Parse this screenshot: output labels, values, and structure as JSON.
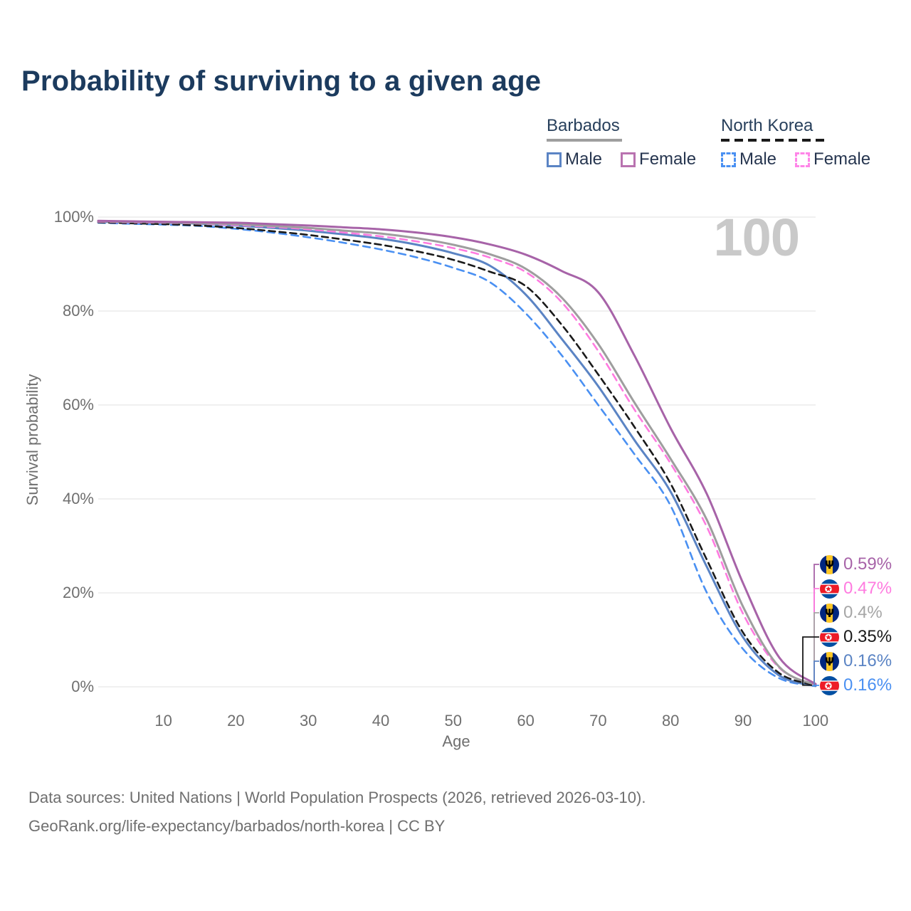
{
  "title": "Probability of surviving to a given age",
  "watermark": "100",
  "legend": {
    "groups": [
      {
        "name": "Barbados",
        "line_style": "solid",
        "line_color": "#9e9e9e",
        "items": [
          {
            "label": "Male",
            "color": "#5b84c4",
            "dashed": false
          },
          {
            "label": "Female",
            "color": "#b973b0",
            "dashed": false
          }
        ]
      },
      {
        "name": "North Korea",
        "line_style": "dashed",
        "line_color": "#1a1a1a",
        "items": [
          {
            "label": "Male",
            "color": "#4a90f2",
            "dashed": true
          },
          {
            "label": "Female",
            "color": "#ff85e8",
            "dashed": true
          }
        ]
      }
    ]
  },
  "axes": {
    "x": {
      "label": "Age",
      "ticks": [
        "10",
        "20",
        "30",
        "40",
        "50",
        "60",
        "70",
        "80",
        "90",
        "100"
      ]
    },
    "y": {
      "label": "Survival probability",
      "ticks": [
        "100%",
        "80%",
        "60%",
        "40%",
        "20%",
        "0%"
      ]
    }
  },
  "end_labels": [
    {
      "series": "Barbados Female",
      "value": "0.59%",
      "color": "#a763a8",
      "flag_icon": "flag-barbados"
    },
    {
      "series": "North Korea Female",
      "value": "0.47%",
      "color": "#ff7be0",
      "flag_icon": "flag-north-korea"
    },
    {
      "series": "Barbados",
      "value": "0.4%",
      "color": "#a6a6a6",
      "flag_icon": "flag-barbados"
    },
    {
      "series": "North Korea",
      "value": "0.35%",
      "color": "#1a1a1a",
      "flag_icon": "flag-north-korea"
    },
    {
      "series": "Barbados Male",
      "value": "0.16%",
      "color": "#5b84c4",
      "flag_icon": "flag-barbados"
    },
    {
      "series": "North Korea Male",
      "value": "0.16%",
      "color": "#4a90f2",
      "flag_icon": "flag-north-korea"
    }
  ],
  "footer": {
    "line1": "Data sources: United Nations | World Population Prospects (2026, retrieved 2026-03-10).",
    "line2": "GeoRank.org/life-expectancy/barbados/north-korea | CC BY"
  },
  "chart_data": {
    "type": "line",
    "title": "Probability of surviving to a given age",
    "xlabel": "Age",
    "ylabel": "Survival probability",
    "unit": "%",
    "xlim": [
      1,
      100
    ],
    "ylim": [
      0,
      100
    ],
    "grid": "horizontal-only",
    "legend_position": "top-right",
    "x": [
      1,
      5,
      10,
      15,
      20,
      25,
      30,
      35,
      40,
      45,
      50,
      55,
      60,
      65,
      70,
      75,
      80,
      85,
      90,
      95,
      100
    ],
    "series": [
      {
        "name": "North Korea Male",
        "country": "North Korea",
        "sex": "Male",
        "color": "#4a90f2",
        "dash": true,
        "values": [
          98.8,
          98.6,
          98.4,
          98.1,
          97.5,
          96.7,
          95.7,
          94.5,
          93.1,
          91.4,
          89.2,
          86.2,
          79.5,
          70.5,
          60.0,
          49.5,
          38.5,
          20.0,
          8.0,
          1.8,
          0.16
        ]
      },
      {
        "name": "Barbados Male",
        "country": "Barbados",
        "sex": "Male",
        "color": "#5b84c4",
        "dash": false,
        "values": [
          99.0,
          98.9,
          98.8,
          98.6,
          98.2,
          97.7,
          97.1,
          96.3,
          95.4,
          94.1,
          92.3,
          89.7,
          83.5,
          74.0,
          64.0,
          52.5,
          41.5,
          25.5,
          10.5,
          2.4,
          0.16
        ]
      },
      {
        "name": "North Korea",
        "country": "North Korea",
        "sex": "Both",
        "color": "#1a1a1a",
        "dash": true,
        "values": [
          98.9,
          98.7,
          98.5,
          98.2,
          97.7,
          97.0,
          96.2,
          95.2,
          94.1,
          92.7,
          90.9,
          88.4,
          85.3,
          77.0,
          66.5,
          55.3,
          43.2,
          27.0,
          11.5,
          2.9,
          0.35
        ]
      },
      {
        "name": "North Korea Female",
        "country": "North Korea",
        "sex": "Female",
        "color": "#ff7be0",
        "dash": true,
        "values": [
          99.0,
          98.9,
          98.8,
          98.6,
          98.3,
          97.9,
          97.4,
          96.7,
          95.9,
          94.8,
          93.4,
          91.4,
          88.3,
          81.8,
          71.5,
          59.0,
          47.5,
          34.0,
          15.5,
          4.0,
          0.47
        ]
      },
      {
        "name": "Barbados",
        "country": "Barbados",
        "sex": "Both",
        "color": "#9e9e9e",
        "dash": false,
        "values": [
          99.1,
          99.0,
          98.9,
          98.7,
          98.5,
          98.1,
          97.7,
          97.1,
          96.5,
          95.5,
          94.1,
          92.1,
          89.0,
          82.8,
          73.0,
          60.5,
          48.5,
          35.5,
          17.0,
          4.2,
          0.4
        ]
      },
      {
        "name": "Barbados Female",
        "country": "Barbados",
        "sex": "Female",
        "color": "#a763a8",
        "dash": false,
        "values": [
          99.2,
          99.1,
          99.0,
          98.9,
          98.8,
          98.5,
          98.2,
          97.8,
          97.4,
          96.7,
          95.7,
          94.2,
          92.0,
          88.5,
          84.0,
          70.5,
          55.0,
          41.0,
          22.0,
          6.2,
          0.59
        ]
      }
    ],
    "end_values_at_age_100": {
      "Barbados Female": 0.59,
      "North Korea Female": 0.47,
      "Barbados": 0.4,
      "North Korea": 0.35,
      "Barbados Male": 0.16,
      "North Korea Male": 0.16
    }
  }
}
